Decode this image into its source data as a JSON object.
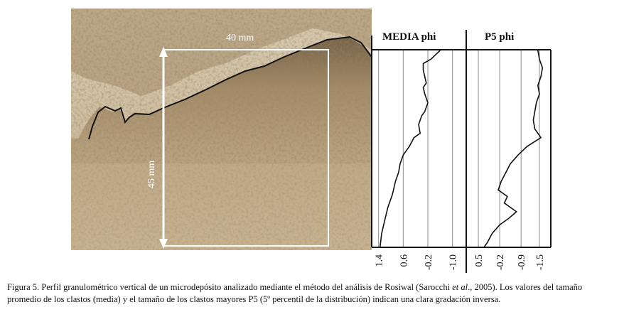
{
  "photo": {
    "width_label": "40 mm",
    "height_label": "45 mm"
  },
  "colors": {
    "sediment_light": "#d8c6a6",
    "sediment_mid": "#b79f7b",
    "sediment_dark": "#8c7453",
    "surface_line": "#111111",
    "scale_box": "#ffffff",
    "grid": "#8a8a8a"
  },
  "chart_data": [
    {
      "type": "line",
      "title": "MEDIA phi",
      "orientation": "vertical-profile",
      "x_ticks": [
        "1.4",
        "0.6",
        "-0.2",
        "-1.0"
      ],
      "xlim": [
        1.6,
        -1.4
      ],
      "x_direction": "decreasing-to-right",
      "y_description": "",
      "ylim": [
        0,
        45
      ],
      "grid": true,
      "series": [
        {
          "name": "",
          "points": [
            {
              "depth": 0,
              "value": -0.6
            },
            {
              "depth": 1,
              "value": -0.45
            },
            {
              "depth": 2,
              "value": -0.3
            },
            {
              "depth": 3,
              "value": -0.05
            },
            {
              "depth": 4.5,
              "value": -0.05
            },
            {
              "depth": 6,
              "value": -0.1
            },
            {
              "depth": 7.5,
              "value": -0.15
            },
            {
              "depth": 8.5,
              "value": -0.05
            },
            {
              "depth": 10,
              "value": -0.1
            },
            {
              "depth": 12,
              "value": -0.2
            },
            {
              "depth": 14,
              "value": -0.1
            },
            {
              "depth": 15,
              "value": 0.0
            },
            {
              "depth": 17,
              "value": 0.1
            },
            {
              "depth": 19,
              "value": 0.05
            },
            {
              "depth": 20,
              "value": 0.25
            },
            {
              "depth": 22,
              "value": 0.4
            },
            {
              "depth": 24,
              "value": 0.6
            },
            {
              "depth": 26,
              "value": 0.7
            },
            {
              "depth": 28,
              "value": 0.75
            },
            {
              "depth": 30,
              "value": 0.85
            },
            {
              "depth": 33,
              "value": 0.95
            },
            {
              "depth": 36,
              "value": 1.1
            },
            {
              "depth": 39,
              "value": 1.2
            },
            {
              "depth": 42,
              "value": 1.3
            },
            {
              "depth": 45,
              "value": 1.35
            }
          ]
        }
      ]
    },
    {
      "type": "line",
      "title": "P5 phi",
      "orientation": "vertical-profile",
      "x_ticks": [
        "0.5",
        "-0.2",
        "-0.9",
        "-1.5"
      ],
      "xlim": [
        0.85,
        -1.85
      ],
      "x_direction": "decreasing-to-right",
      "y_description": "",
      "ylim": [
        0,
        45
      ],
      "grid": true,
      "series": [
        {
          "name": "",
          "points": [
            {
              "depth": 0,
              "value": -1.45
            },
            {
              "depth": 2,
              "value": -1.5
            },
            {
              "depth": 4,
              "value": -1.6
            },
            {
              "depth": 6,
              "value": -1.55
            },
            {
              "depth": 8,
              "value": -1.45
            },
            {
              "depth": 10,
              "value": -1.5
            },
            {
              "depth": 12,
              "value": -1.4
            },
            {
              "depth": 14,
              "value": -1.35
            },
            {
              "depth": 16,
              "value": -1.3
            },
            {
              "depth": 18,
              "value": -1.35
            },
            {
              "depth": 20,
              "value": -1.55
            },
            {
              "depth": 22,
              "value": -1.1
            },
            {
              "depth": 24,
              "value": -0.8
            },
            {
              "depth": 26,
              "value": -0.55
            },
            {
              "depth": 28,
              "value": -0.4
            },
            {
              "depth": 30,
              "value": -0.25
            },
            {
              "depth": 32,
              "value": -0.15
            },
            {
              "depth": 33.5,
              "value": -0.45
            },
            {
              "depth": 35,
              "value": -0.35
            },
            {
              "depth": 37,
              "value": -0.75
            },
            {
              "depth": 38.5,
              "value": -0.5
            },
            {
              "depth": 40,
              "value": -0.2
            },
            {
              "depth": 42,
              "value": 0.05
            },
            {
              "depth": 44,
              "value": 0.2
            },
            {
              "depth": 45,
              "value": 0.3
            }
          ]
        }
      ]
    }
  ],
  "caption": {
    "prefix": "Figura 5. Perfil granulométrico vertical de un microdepósito analizado mediante el método del análisis de Rosiwal (Sarocchi ",
    "etal": "et al",
    "suffix": "., 2005). Los valores del tamaño promedio de los clastos (media) y el tamaño de los clastos mayores P5 (5º percentil de la distribución) indican una clara gradación inversa."
  }
}
